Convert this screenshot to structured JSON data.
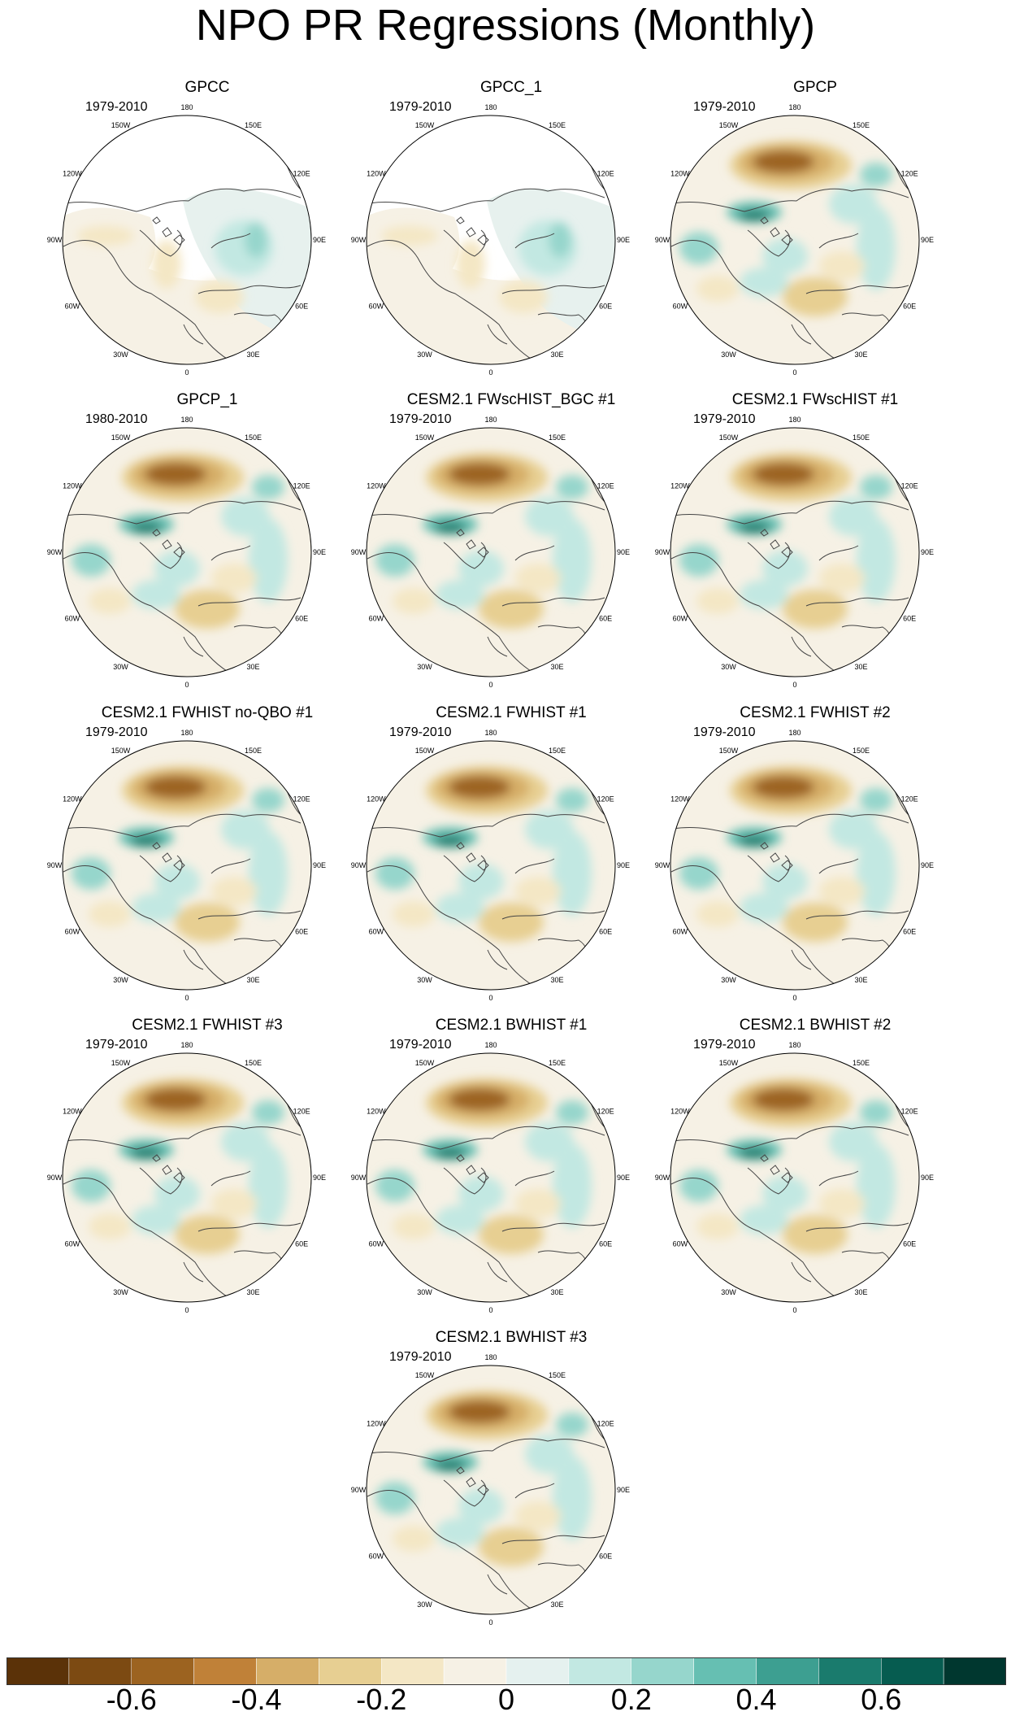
{
  "title": "NPO PR Regressions (Monthly)",
  "panels": [
    {
      "title": "GPCC",
      "years": "1979-2010",
      "style": "gpcc"
    },
    {
      "title": "GPCC_1",
      "years": "1979-2010",
      "style": "gpcc"
    },
    {
      "title": "GPCP",
      "years": "1979-2010",
      "style": "full"
    },
    {
      "title": "GPCP_1",
      "years": "1980-2010",
      "style": "full"
    },
    {
      "title": "CESM2.1 FWscHIST_BGC #1",
      "years": "1979-2010",
      "style": "full"
    },
    {
      "title": "CESM2.1 FWscHIST #1",
      "years": "1979-2010",
      "style": "full"
    },
    {
      "title": "CESM2.1 FWHIST no-QBO #1",
      "years": "1979-2010",
      "style": "full"
    },
    {
      "title": "CESM2.1 FWHIST #1",
      "years": "1979-2010",
      "style": "full"
    },
    {
      "title": "CESM2.1 FWHIST #2",
      "years": "1979-2010",
      "style": "full"
    },
    {
      "title": "CESM2.1 FWHIST #3",
      "years": "1979-2010",
      "style": "full"
    },
    {
      "title": "CESM2.1 BWHIST #1",
      "years": "1979-2010",
      "style": "full"
    },
    {
      "title": "CESM2.1 BWHIST #2",
      "years": "1979-2010",
      "style": "full"
    },
    {
      "title": "CESM2.1 BWHIST #3",
      "years": "1979-2010",
      "style": "full"
    }
  ],
  "longitude_labels": [
    "180",
    "150E",
    "120E",
    "90E",
    "60E",
    "30E",
    "0",
    "30W",
    "60W",
    "90W",
    "120W",
    "150W"
  ],
  "colorbar": {
    "colors": [
      "#5b3208",
      "#7c4a12",
      "#9c6320",
      "#c08138",
      "#d6ae68",
      "#e7cf92",
      "#f4e7c5",
      "#f6f1e5",
      "#e5f1ef",
      "#c2e8e2",
      "#96d6cc",
      "#66bfb2",
      "#3d9f91",
      "#1a7b6d",
      "#065c50",
      "#00372f"
    ],
    "tick_labels": [
      "-0.6",
      "-0.4",
      "-0.2",
      "0",
      "0.2",
      "0.4",
      "0.6"
    ],
    "tick_values": [
      -0.6,
      -0.4,
      -0.2,
      0,
      0.2,
      0.4,
      0.6
    ],
    "levels": [
      -0.7,
      -0.6,
      -0.5,
      -0.4,
      -0.3,
      -0.2,
      -0.1,
      -0.05,
      0.05,
      0.1,
      0.2,
      0.3,
      0.4,
      0.5,
      0.6,
      0.7
    ]
  }
}
